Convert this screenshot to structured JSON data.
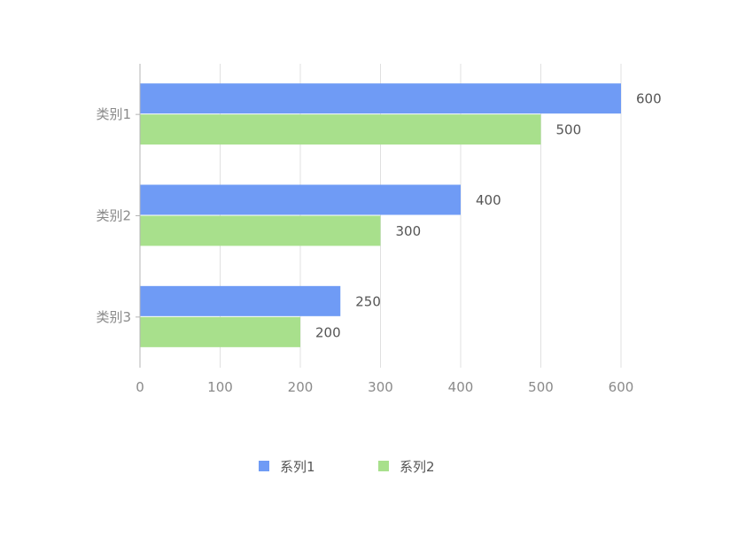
{
  "chart_data": {
    "type": "bar",
    "orientation": "horizontal",
    "categories": [
      "类别1",
      "类别2",
      "类别3"
    ],
    "series": [
      {
        "name": "系列1",
        "values": [
          600,
          400,
          250
        ],
        "color": "#6f9bf5"
      },
      {
        "name": "系列2",
        "values": [
          500,
          300,
          200
        ],
        "color": "#a8e08c"
      }
    ],
    "xlim": [
      0,
      600
    ],
    "x_ticks": [
      0,
      100,
      200,
      300,
      400,
      500,
      600
    ],
    "grid": "vertical",
    "legend_position": "bottom-center",
    "data_labels": true
  }
}
